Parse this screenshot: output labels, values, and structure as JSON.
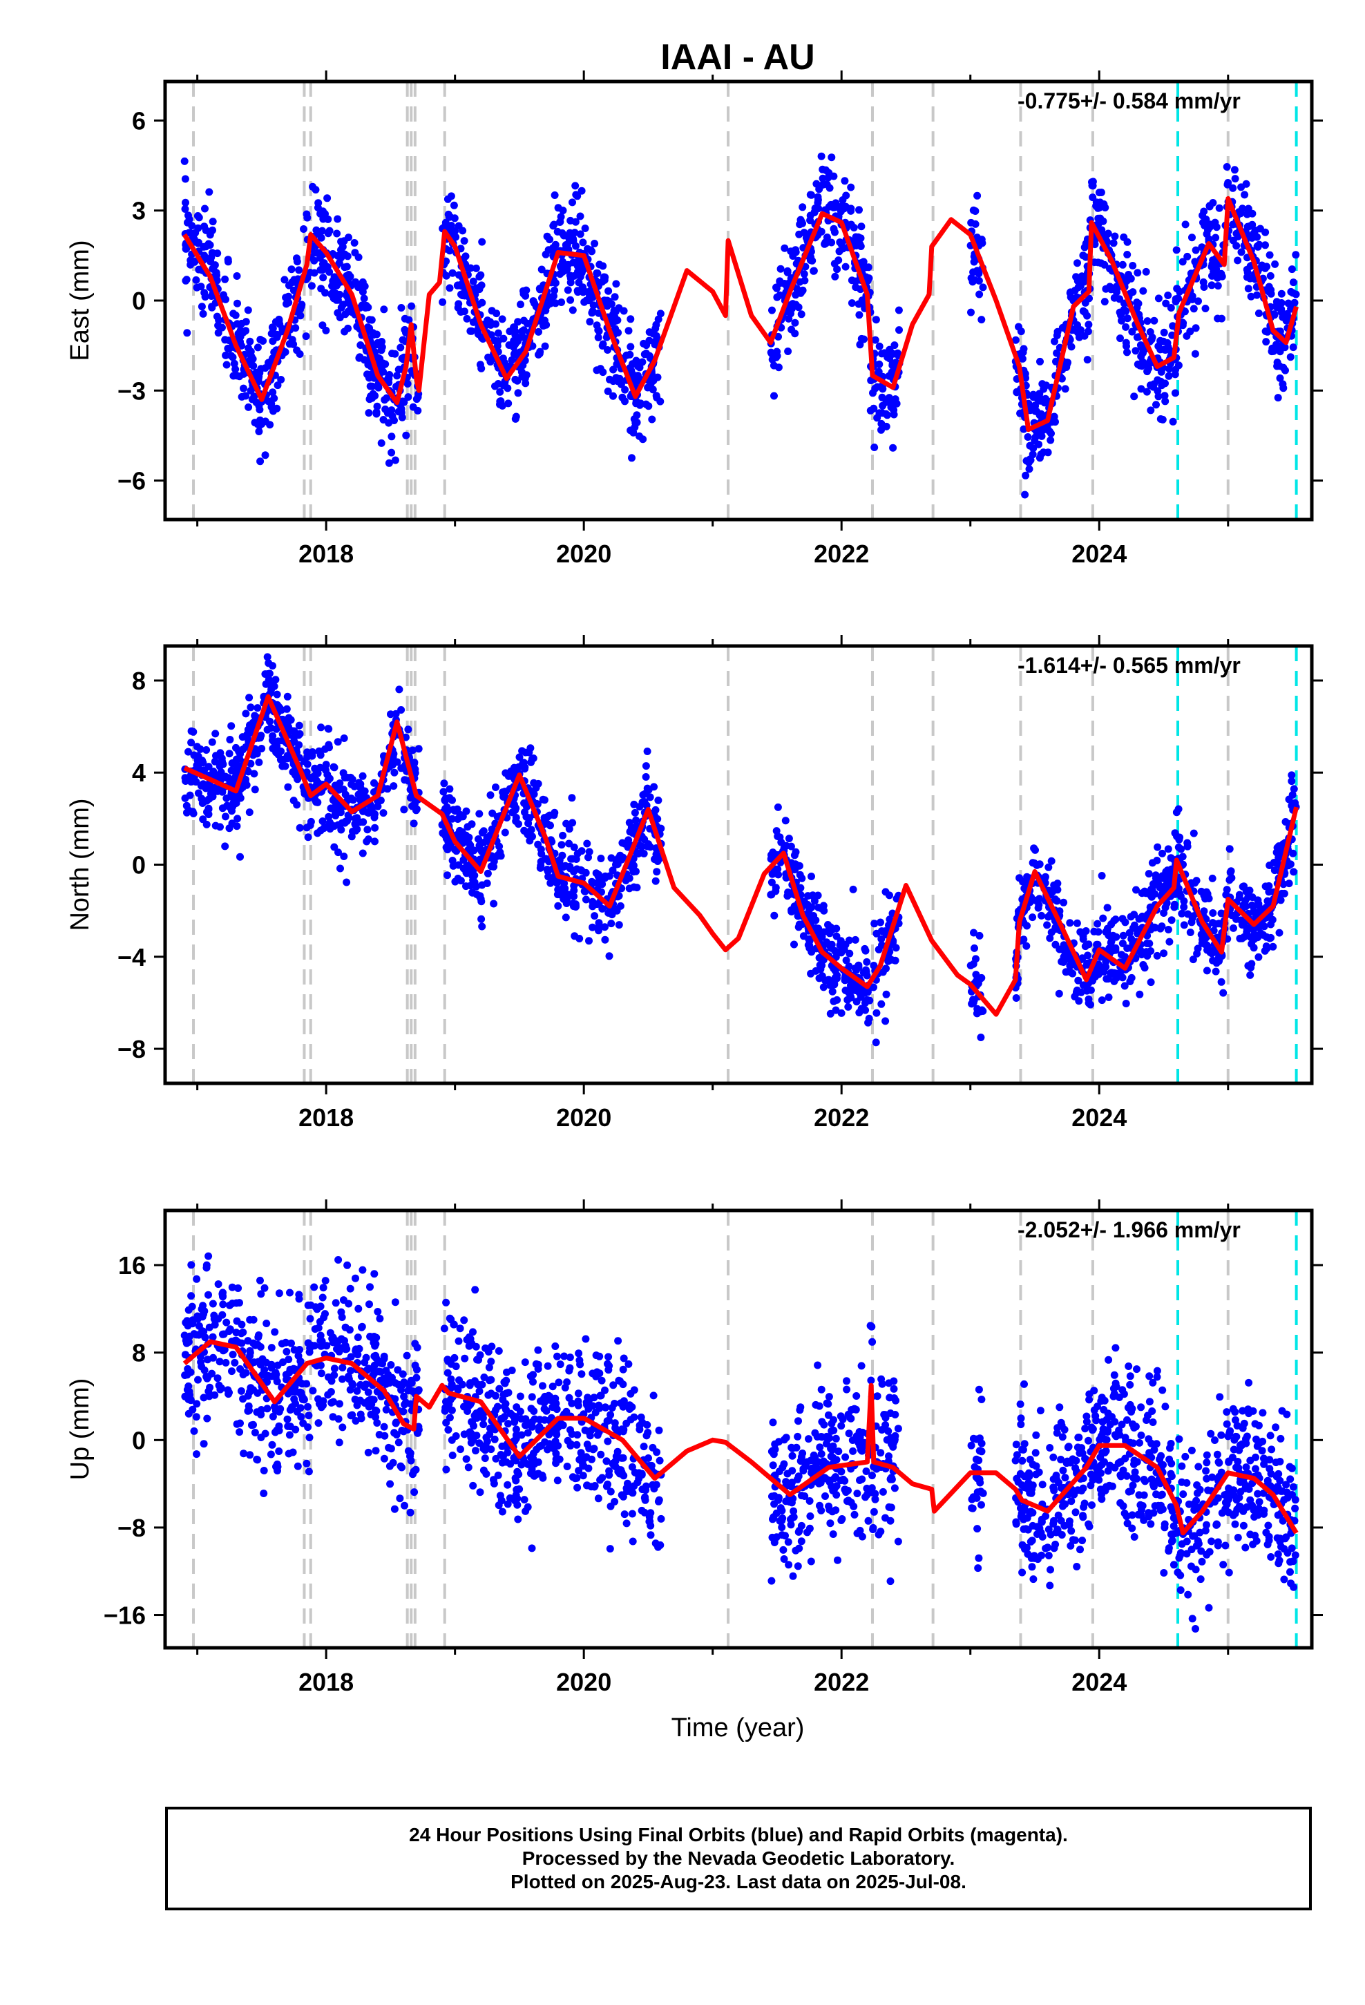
{
  "title": "IAAI - AU",
  "xlabel": "Time (year)",
  "footer": {
    "line1": "24 Hour Positions Using Final Orbits (blue) and Rapid Orbits (magenta).",
    "line2": "Processed by the Nevada Geodetic Laboratory.",
    "line3": "Plotted on 2025-Aug-23. Last data on 2025-Jul-08."
  },
  "colors": {
    "points": "#0000ff",
    "fit": "#ff0000",
    "equipment_change": "#c8c8c8",
    "earthquake": "#00e6e6"
  },
  "chart_data": [
    {
      "type": "scatter",
      "component": "east",
      "ylabel": "East (mm)",
      "rate_text": "-0.775+/- 0.584 mm/yr",
      "xlim": [
        2016.75,
        2025.65
      ],
      "ylim": [
        -7.3,
        7.3
      ],
      "xticks": [
        2018,
        2020,
        2022,
        2024
      ],
      "yticks": [
        -6,
        -3,
        0,
        3,
        6
      ],
      "data_segments": [
        [
          2016.9,
          2018.72
        ],
        [
          2018.9,
          2020.6
        ],
        [
          2021.45,
          2022.45
        ],
        [
          2023.0,
          2023.1
        ],
        [
          2023.35,
          2025.53
        ]
      ],
      "fit": {
        "x": [
          2016.9,
          2017.1,
          2017.3,
          2017.5,
          2017.7,
          2017.85,
          2017.88,
          2018.0,
          2018.2,
          2018.4,
          2018.55,
          2018.62,
          2018.66,
          2018.7,
          2018.72,
          2018.8,
          2018.88,
          2018.92,
          2019.0,
          2019.2,
          2019.4,
          2019.55,
          2019.8,
          2020.0,
          2020.2,
          2020.4,
          2020.55,
          2020.8,
          2021.0,
          2021.1,
          2021.12,
          2021.3,
          2021.45,
          2021.6,
          2021.85,
          2022.0,
          2022.2,
          2022.24,
          2022.4,
          2022.55,
          2022.68,
          2022.7,
          2022.85,
          2023.0,
          2023.2,
          2023.38,
          2023.45,
          2023.6,
          2023.8,
          2023.92,
          2023.94,
          2024.1,
          2024.3,
          2024.45,
          2024.58,
          2024.62,
          2024.85,
          2024.97,
          2025.0,
          2025.2,
          2025.35,
          2025.45,
          2025.53
        ],
        "y": [
          2.2,
          0.8,
          -1.5,
          -3.3,
          -1.0,
          1.2,
          2.2,
          1.6,
          0.2,
          -2.5,
          -3.4,
          -2.2,
          -0.8,
          -2.6,
          -3.0,
          0.2,
          0.6,
          2.3,
          1.8,
          -0.8,
          -2.6,
          -1.7,
          1.6,
          1.5,
          -1.0,
          -3.2,
          -2.0,
          1.0,
          0.3,
          -0.5,
          2.0,
          -0.5,
          -1.4,
          0.3,
          2.9,
          2.6,
          0.2,
          -2.5,
          -2.9,
          -0.8,
          0.2,
          1.8,
          2.7,
          2.2,
          0.0,
          -2.2,
          -4.3,
          -4.0,
          -0.2,
          0.3,
          2.6,
          1.3,
          -0.8,
          -2.2,
          -1.9,
          -0.4,
          1.9,
          1.2,
          3.4,
          1.3,
          -1.0,
          -1.4,
          -0.2
        ]
      }
    },
    {
      "type": "scatter",
      "component": "north",
      "ylabel": "North (mm)",
      "rate_text": "-1.614+/- 0.565 mm/yr",
      "xlim": [
        2016.75,
        2025.65
      ],
      "ylim": [
        -9.5,
        9.5
      ],
      "xticks": [
        2018,
        2020,
        2022,
        2024
      ],
      "yticks": [
        -8,
        -4,
        0,
        4,
        8
      ],
      "data_segments": [
        [
          2016.9,
          2018.72
        ],
        [
          2018.9,
          2020.6
        ],
        [
          2021.45,
          2022.45
        ],
        [
          2023.0,
          2023.1
        ],
        [
          2023.35,
          2025.53
        ]
      ],
      "fit": {
        "x": [
          2016.9,
          2017.1,
          2017.3,
          2017.55,
          2017.8,
          2017.88,
          2018.0,
          2018.2,
          2018.4,
          2018.55,
          2018.7,
          2018.9,
          2019.0,
          2019.2,
          2019.5,
          2019.7,
          2019.8,
          2020.0,
          2020.2,
          2020.5,
          2020.7,
          2020.9,
          2021.0,
          2021.1,
          2021.2,
          2021.4,
          2021.55,
          2021.7,
          2021.85,
          2022.0,
          2022.2,
          2022.3,
          2022.5,
          2022.7,
          2022.9,
          2023.0,
          2023.2,
          2023.35,
          2023.38,
          2023.5,
          2023.7,
          2023.9,
          2024.0,
          2024.2,
          2024.45,
          2024.58,
          2024.6,
          2024.8,
          2024.95,
          2025.0,
          2025.2,
          2025.35,
          2025.53
        ],
        "y": [
          4.2,
          3.7,
          3.2,
          7.3,
          4.1,
          3.0,
          3.5,
          2.3,
          3.0,
          6.2,
          3.0,
          2.2,
          1.0,
          -0.3,
          3.9,
          1.2,
          -0.5,
          -0.8,
          -1.8,
          2.4,
          -1.0,
          -2.2,
          -3.0,
          -3.7,
          -3.2,
          -0.4,
          0.5,
          -2.2,
          -3.8,
          -4.5,
          -5.3,
          -4.4,
          -0.9,
          -3.3,
          -4.8,
          -5.2,
          -6.5,
          -5.0,
          -2.5,
          -0.3,
          -2.6,
          -5.0,
          -3.7,
          -4.5,
          -1.8,
          -1.0,
          0.2,
          -2.5,
          -3.8,
          -1.5,
          -2.6,
          -1.8,
          2.5
        ]
      }
    },
    {
      "type": "scatter",
      "component": "up",
      "ylabel": "Up (mm)",
      "rate_text": "-2.052+/- 1.966 mm/yr",
      "xlim": [
        2016.75,
        2025.65
      ],
      "ylim": [
        -19.0,
        21.0
      ],
      "xticks": [
        2018,
        2020,
        2022,
        2024
      ],
      "yticks": [
        -16,
        -8,
        0,
        8,
        16
      ],
      "data_segments": [
        [
          2016.9,
          2018.72
        ],
        [
          2018.9,
          2020.6
        ],
        [
          2021.45,
          2022.45
        ],
        [
          2023.0,
          2023.1
        ],
        [
          2023.35,
          2025.53
        ]
      ],
      "fit": {
        "x": [
          2016.9,
          2017.1,
          2017.3,
          2017.6,
          2017.85,
          2018.0,
          2018.2,
          2018.45,
          2018.6,
          2018.68,
          2018.7,
          2018.8,
          2018.9,
          2018.95,
          2019.2,
          2019.5,
          2019.8,
          2020.0,
          2020.3,
          2020.55,
          2020.8,
          2021.0,
          2021.1,
          2021.3,
          2021.6,
          2021.9,
          2022.2,
          2022.23,
          2022.25,
          2022.4,
          2022.55,
          2022.7,
          2022.72,
          2023.0,
          2023.2,
          2023.35,
          2023.4,
          2023.6,
          2023.9,
          2024.0,
          2024.2,
          2024.45,
          2024.6,
          2024.65,
          2024.8,
          2025.0,
          2025.2,
          2025.35,
          2025.53
        ],
        "y": [
          7.0,
          9.0,
          8.5,
          3.5,
          7.0,
          7.5,
          7.0,
          4.5,
          1.5,
          1.0,
          4.0,
          3.0,
          5.0,
          4.3,
          3.5,
          -1.5,
          2.0,
          2.0,
          0.0,
          -3.5,
          -1.0,
          0.0,
          -0.2,
          -2.0,
          -5.0,
          -2.5,
          -2.0,
          5.0,
          -2.0,
          -2.5,
          -4.0,
          -4.5,
          -6.5,
          -3.0,
          -3.0,
          -4.5,
          -5.5,
          -6.5,
          -2.5,
          -0.5,
          -0.5,
          -2.5,
          -6.0,
          -8.5,
          -6.5,
          -3.0,
          -3.5,
          -5.0,
          -8.5
        ]
      }
    }
  ],
  "vertical_events": {
    "equipment_change": [
      2016.97,
      2017.83,
      2017.88,
      2018.63,
      2018.66,
      2018.69,
      2018.92,
      2021.12,
      2022.24,
      2022.71,
      2023.39,
      2023.95,
      2025.0
    ],
    "earthquake": [
      2024.61,
      2025.53
    ]
  }
}
